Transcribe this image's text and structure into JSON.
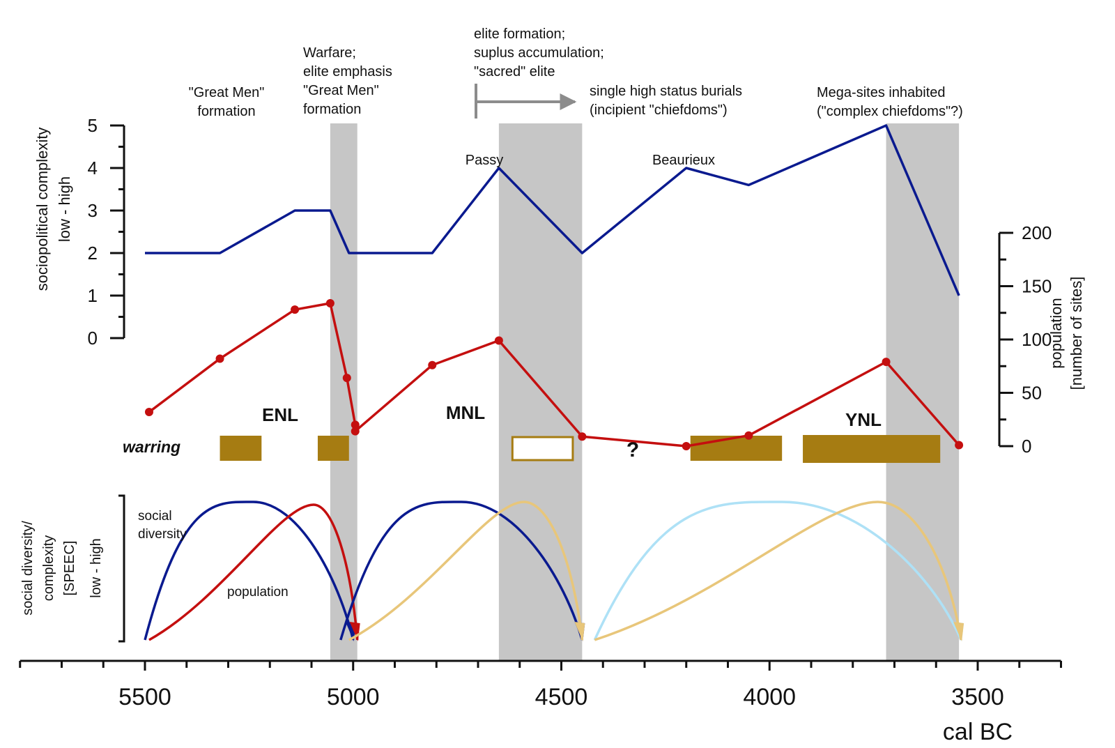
{
  "chart_data": {
    "type": "line",
    "x_axis": {
      "label": "cal BC",
      "range": [
        5800,
        3300
      ],
      "ticks": [
        5500,
        5000,
        4500,
        4000,
        3500
      ],
      "tick_labels": [
        "5500",
        "5000",
        "4500",
        "4000",
        "3500"
      ],
      "reversed": true
    },
    "left_axis": {
      "label": "sociopolitical complexity",
      "sublabel": "low - high",
      "range": [
        0,
        5
      ],
      "tick_labels": [
        "0",
        "1",
        "2",
        "3",
        "4",
        "5"
      ]
    },
    "right_axis": {
      "label": "population",
      "sublabel": "[number of sites]",
      "range": [
        0,
        200
      ],
      "tick_labels": [
        "0",
        "50",
        "100",
        "150",
        "200"
      ]
    },
    "lower_axis": {
      "label": "social diversity/",
      "label2": "complexity",
      "label3": "[SPEEC]",
      "sublabel": "low - high"
    },
    "shaded_periods": [
      [
        5055,
        4990
      ],
      [
        4650,
        4450
      ],
      [
        3720,
        3545
      ]
    ],
    "complexity_series": {
      "name": "sociopolitical complexity",
      "color": "#0a1a8f",
      "x": [
        5500,
        5320,
        5140,
        5055,
        5010,
        4810,
        4650,
        4450,
        4200,
        4050,
        3720,
        3545
      ],
      "y": [
        2,
        2,
        3,
        3,
        2,
        2,
        4,
        2,
        4,
        3.6,
        5,
        1
      ]
    },
    "population_series": {
      "name": "population [number of sites]",
      "color": "#c40f0f",
      "x": [
        5490,
        5320,
        5140,
        5055,
        5015,
        4995,
        4995,
        4810,
        4650,
        4450,
        4200,
        4050,
        3720,
        3545
      ],
      "y": [
        32,
        82,
        128,
        134,
        64,
        20,
        14,
        76,
        99,
        9,
        0,
        10,
        79,
        1
      ]
    },
    "warring": {
      "label": "warring",
      "color": "#a67c12",
      "periods": [
        {
          "start": 5320,
          "end": 5220,
          "filled": true
        },
        {
          "start": 5085,
          "end": 5010,
          "filled": true
        },
        {
          "start": 4620,
          "end": 4470,
          "filled": false
        },
        {
          "start": 4190,
          "end": 3970,
          "filled": true
        },
        {
          "start": 3920,
          "end": 3590,
          "filled": true
        }
      ]
    },
    "phases": [
      "ENL",
      "MNL",
      "YNL"
    ],
    "question_mark": "?",
    "point_labels": [
      "Passy",
      "Beaurieux"
    ],
    "annotations": {
      "great_men": [
        "\"Great Men\"",
        "formation"
      ],
      "warfare": [
        "Warfare;",
        "elite emphasis",
        "\"Great Men\"",
        "formation"
      ],
      "elite": [
        "elite formation;",
        "suplus accumulation;",
        "\"sacred\" elite"
      ],
      "single_burials": [
        "single high status burials",
        "(incipient \"chiefdoms\")"
      ],
      "mega_sites": [
        "Mega-sites inhabited",
        "(\"complex chiefdoms\"?)"
      ]
    },
    "speec_cycles": {
      "labels": {
        "social_diversity": [
          "social",
          "diversity"
        ],
        "population": "population"
      },
      "arcs": [
        {
          "kind": "diversity",
          "color": "#0a1a8f",
          "start": 5500,
          "peak": 5240,
          "end": 5000,
          "peak_level": 1.0
        },
        {
          "kind": "population",
          "color": "#c40f0f",
          "start": 5490,
          "peak": 5095,
          "end": 4990,
          "peak_level": 0.98
        },
        {
          "kind": "diversity",
          "color": "#0a1a8f",
          "start": 5030,
          "peak": 4740,
          "end": 4450,
          "peak_level": 1.0
        },
        {
          "kind": "population",
          "color": "#e8c67a",
          "start": 5010,
          "peak": 4590,
          "end": 4450,
          "peak_level": 1.0
        },
        {
          "kind": "diversity",
          "color": "#aee1f6",
          "start": 4420,
          "peak": 3970,
          "end": 3540,
          "peak_level": 1.0
        },
        {
          "kind": "population",
          "color": "#e8c67a",
          "start": 4420,
          "peak": 3740,
          "end": 3540,
          "peak_level": 1.0
        }
      ]
    }
  }
}
